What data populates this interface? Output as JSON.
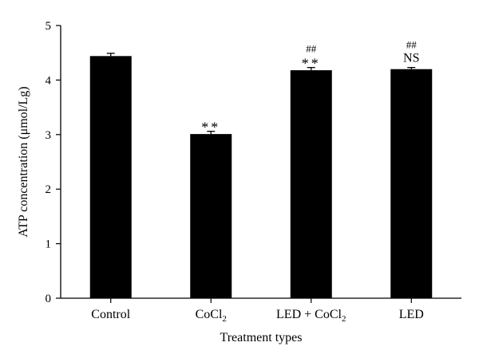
{
  "chart_data": {
    "type": "bar",
    "title": "",
    "xlabel": "Treatment types",
    "ylabel": "ATP concentration (μmol/Lg)",
    "ylim": [
      0,
      5
    ],
    "yticks": [
      0,
      1,
      2,
      3,
      4,
      5
    ],
    "grid": false,
    "legend": "none",
    "colors": {
      "bar": "#000000",
      "background": "#ffffff"
    },
    "categories": [
      {
        "base": "Control",
        "sub": "",
        "tail": ""
      },
      {
        "base": "CoCl",
        "sub": "2",
        "tail": ""
      },
      {
        "base": "LED + CoCl",
        "sub": "2",
        "tail": ""
      },
      {
        "base": "LED",
        "sub": "",
        "tail": ""
      }
    ],
    "values": [
      4.44,
      3.01,
      4.18,
      4.2
    ],
    "errors": [
      0.05,
      0.05,
      0.05,
      0.03
    ],
    "annotations": [
      [],
      [
        "**"
      ],
      [
        "##",
        "**"
      ],
      [
        "##",
        "NS"
      ]
    ]
  }
}
